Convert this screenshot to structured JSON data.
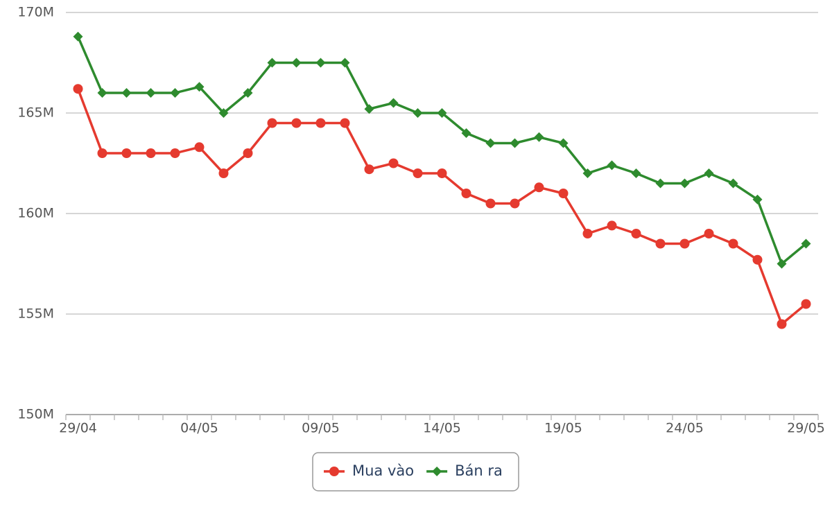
{
  "chart_data": {
    "type": "line",
    "categories": [
      "29/04",
      null,
      null,
      null,
      null,
      "04/05",
      null,
      null,
      null,
      null,
      "09/05",
      null,
      null,
      null,
      null,
      "14/05",
      null,
      null,
      null,
      null,
      "19/05",
      null,
      null,
      null,
      null,
      "24/05",
      null,
      null,
      null,
      null,
      "29/05"
    ],
    "series": [
      {
        "name": "Mua vào",
        "color": "#e53a2f",
        "marker": "circle",
        "values": [
          166.2,
          163,
          163,
          163,
          163,
          163.3,
          162,
          163,
          164.5,
          164.5,
          164.5,
          164.5,
          162.2,
          162.5,
          162,
          162,
          161,
          160.5,
          160.5,
          161.3,
          161,
          159,
          159.4,
          159,
          158.5,
          158.5,
          159,
          158.5,
          157.7,
          154.5,
          155.5
        ]
      },
      {
        "name": "Bán ra",
        "color": "#2e8b2e",
        "marker": "diamond",
        "values": [
          168.8,
          166,
          166,
          166,
          166,
          166.3,
          165,
          166,
          167.5,
          167.5,
          167.5,
          167.5,
          165.2,
          165.5,
          165,
          165,
          164,
          163.5,
          163.5,
          163.8,
          163.5,
          162,
          162.4,
          162,
          161.5,
          161.5,
          162,
          161.5,
          160.7,
          157.5,
          158.5
        ]
      }
    ],
    "ylim": [
      150,
      170
    ],
    "yticks": [
      {
        "value": 150,
        "label": "150M"
      },
      {
        "value": 155,
        "label": "155M"
      },
      {
        "value": 160,
        "label": "160M"
      },
      {
        "value": 165,
        "label": "165M"
      },
      {
        "value": 170,
        "label": "170M"
      }
    ],
    "grid": true,
    "legend": "bottom"
  }
}
